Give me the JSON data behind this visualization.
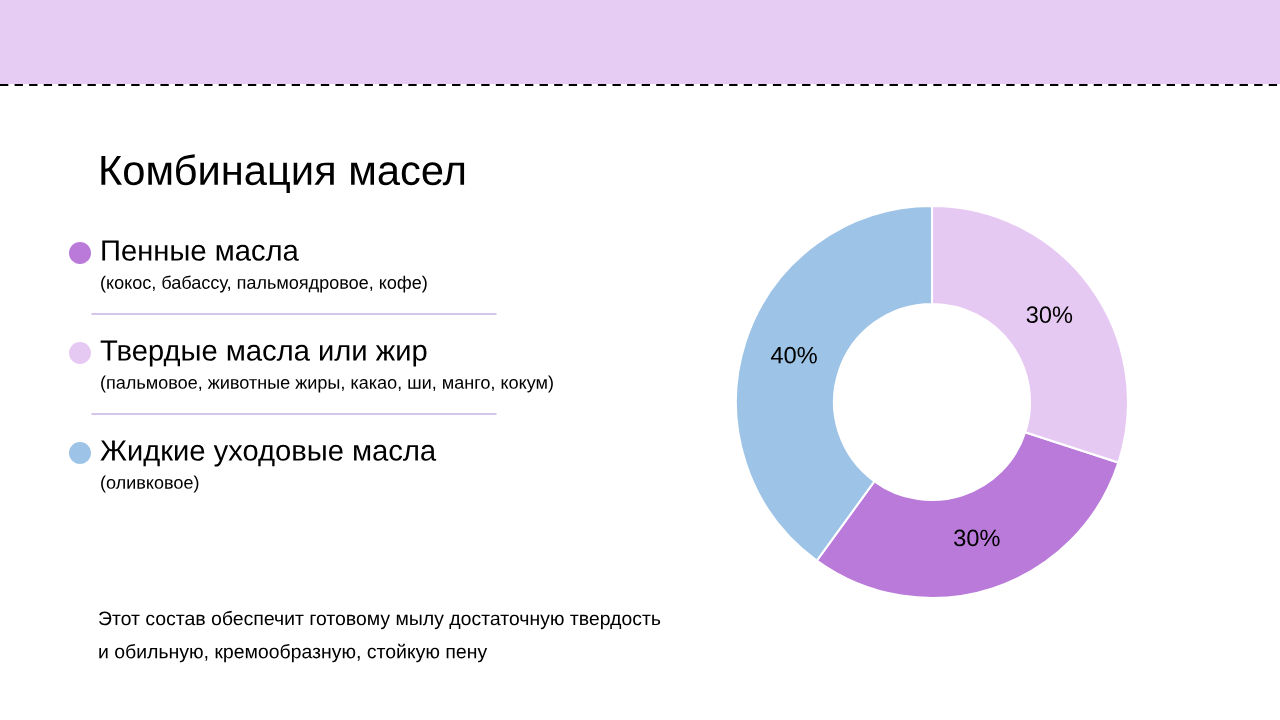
{
  "chart_data": {
    "type": "donut",
    "title": "Комбинация масел",
    "categories": [
      "Пенные масла",
      "Твердые масла или жир",
      "Жидкие уходовые масла"
    ],
    "values": [
      30,
      30,
      40
    ],
    "colors": [
      "#b97ad9",
      "#e6c9f3",
      "#9dc3e6"
    ],
    "value_labels": [
      "30%",
      "30%",
      "40%"
    ],
    "legend": "left",
    "annotations": [
      "(кокос, бабассу, пальмоядровое, кофе)",
      "(пальмовое, животные жиры, какао, ши, манго, кокум)",
      "(оливковое)",
      "Этот состав обеспечит готовому мылу достаточную твердость",
      "и обильную, кремообразную, стойкую пену"
    ]
  }
}
